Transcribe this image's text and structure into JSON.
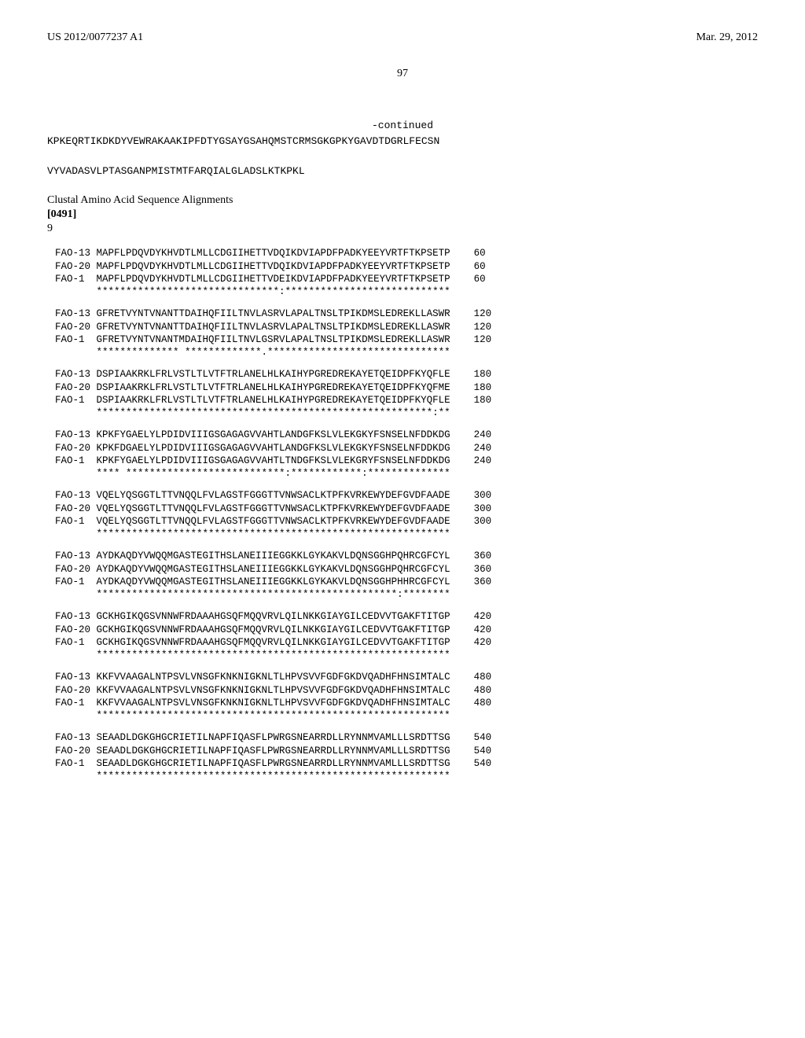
{
  "header": {
    "pub_number": "US 2012/0077237 A1",
    "date": "Mar. 29, 2012"
  },
  "page_number": "97",
  "continued_label": "-continued",
  "top_sequences": [
    "KPKEQRTIKDKDYVEWRAKAAKIPFDTYGSAYGSAHQMSTCRMSGKGPKYGAVDTDGRLFECSN",
    "VYVADASVLPTASGANPMISTMTFARQIALGLADSLKTKPKL"
  ],
  "section": {
    "title": "Clustal Amino Acid Sequence Alignments",
    "para": "[0491]",
    "table_num": "9"
  },
  "alignment_groups": [
    {
      "rows": [
        {
          "label": "FAO-13",
          "seq": "MAPFLPDQVDYKHVDTLMLLCDGIIHETTVDQIKDVIAPDFPADKYEEYVRTFTKPSETP",
          "pos": "60"
        },
        {
          "label": "FAO-20",
          "seq": "MAPFLPDQVDYKHVDTLMLLCDGIIHETTVDQIKDVIAPDFPADKYEEYVRTFTKPSETP",
          "pos": "60"
        },
        {
          "label": "FAO-1",
          "seq": "MAPFLPDQVDYKHVDTLMLLCDGIIHETTVDEIKDVIAPDFPADKYEEYVRTFTKPSETP",
          "pos": "60"
        },
        {
          "label": "",
          "seq": "*******************************:****************************",
          "pos": ""
        }
      ]
    },
    {
      "rows": [
        {
          "label": "FAO-13",
          "seq": "GFRETVYNTVNANTTDAIHQFIILTNVLASRVLAPALTNSLTPIKDMSLEDREKLLASWR",
          "pos": "120"
        },
        {
          "label": "FAO-20",
          "seq": "GFRETVYNTVNANTTDAIHQFIILTNVLASRVLAPALTNSLTPIKDMSLEDREKLLASWR",
          "pos": "120"
        },
        {
          "label": "FAO-1",
          "seq": "GFRETVYNTVNANTMDAIHQFIILTNVLGSRVLAPALTNSLTPIKDMSLEDREKLLASWR",
          "pos": "120"
        },
        {
          "label": "",
          "seq": "************** *************.*******************************",
          "pos": ""
        }
      ]
    },
    {
      "rows": [
        {
          "label": "FAO-13",
          "seq": "DSPIAAKRKLFRLVSTLTLVTFTRLANELHLKAIHYPGREDREKAYETQEIDPFKYQFLE",
          "pos": "180"
        },
        {
          "label": "FAO-20",
          "seq": "DSPIAAKRKLFRLVSTLTLVTFTRLANELHLKAIHYPGREDREKAYETQEIDPFKYQFME",
          "pos": "180"
        },
        {
          "label": "FAO-1",
          "seq": "DSPIAAKRKLFRLVSTLTLVTFTRLANELHLKAIHYPGREDREKAYETQEIDPFKYQFLE",
          "pos": "180"
        },
        {
          "label": "",
          "seq": "*********************************************************:**",
          "pos": ""
        }
      ]
    },
    {
      "rows": [
        {
          "label": "FAO-13",
          "seq": "KPKFYGAELYLPDIDVIIIGSGAGAGVVAHTLANDGFKSLVLEKGKYFSNSELNFDDKDG",
          "pos": "240"
        },
        {
          "label": "FAO-20",
          "seq": "KPKFDGAELYLPDIDVIIIGSGAGAGVVAHTLANDGFKSLVLEKGKYFSNSELNFDDKDG",
          "pos": "240"
        },
        {
          "label": "FAO-1",
          "seq": "KPKFYGAELYLPDIDVIIIGSGAGAGVVAHTLTNDGFKSLVLEKGRYFSNSELNFDDKDG",
          "pos": "240"
        },
        {
          "label": "",
          "seq": "**** ***************************:************:**************",
          "pos": ""
        }
      ]
    },
    {
      "rows": [
        {
          "label": "FAO-13",
          "seq": "VQELYQSGGTLTTVNQQLFVLAGSTFGGGTTVNWSACLKTPFKVRKEWYDEFGVDFAADE",
          "pos": "300"
        },
        {
          "label": "FAO-20",
          "seq": "VQELYQSGGTLTTVNQQLFVLAGSTFGGGTTVNWSACLKTPFKVRKEWYDEFGVDFAADE",
          "pos": "300"
        },
        {
          "label": "FAO-1",
          "seq": "VQELYQSGGTLTTVNQQLFVLAGSTFGGGTTVNWSACLKTPFKVRKEWYDEFGVDFAADE",
          "pos": "300"
        },
        {
          "label": "",
          "seq": "************************************************************",
          "pos": ""
        }
      ]
    },
    {
      "rows": [
        {
          "label": "FAO-13",
          "seq": "AYDKAQDYVWQQMGASTEGITHSLANEIIIEGGKKLGYKAKVLDQNSGGHPQHRCGFCYL",
          "pos": "360"
        },
        {
          "label": "FAO-20",
          "seq": "AYDKAQDYVWQQMGASTEGITHSLANEIIIEGGKKLGYKAKVLDQNSGGHPQHRCGFCYL",
          "pos": "360"
        },
        {
          "label": "FAO-1",
          "seq": "AYDKAQDYVWQQMGASTEGITHSLANEIIIEGGKKLGYKAKVLDQNSGGHPHHRCGFCYL",
          "pos": "360"
        },
        {
          "label": "",
          "seq": "***************************************************:********",
          "pos": ""
        }
      ]
    },
    {
      "rows": [
        {
          "label": "FAO-13",
          "seq": "GCKHGIKQGSVNNWFRDAAAHGSQFMQQVRVLQILNKKGIAYGILCEDVVTGAKFTITGP",
          "pos": "420"
        },
        {
          "label": "FAO-20",
          "seq": "GCKHGIKQGSVNNWFRDAAAHGSQFMQQVRVLQILNKKGIAYGILCEDVVTGAKFTITGP",
          "pos": "420"
        },
        {
          "label": "FAO-1",
          "seq": "GCKHGIKQGSVNNWFRDAAAHGSQFMQQVRVLQILNKKGIAYGILCEDVVTGAKFTITGP",
          "pos": "420"
        },
        {
          "label": "",
          "seq": "************************************************************",
          "pos": ""
        }
      ]
    },
    {
      "rows": [
        {
          "label": "FAO-13",
          "seq": "KKFVVAAGALNTPSVLVNSGFKNKNIGKNLTLHPVSVVFGDFGKDVQADHFHNSIMTALC",
          "pos": "480"
        },
        {
          "label": "FAO-20",
          "seq": "KKFVVAAGALNTPSVLVNSGFKNKNIGKNLTLHPVSVVFGDFGKDVQADHFHNSIMTALC",
          "pos": "480"
        },
        {
          "label": "FAO-1",
          "seq": "KKFVVAAGALNTPSVLVNSGFKNKNIGKNLTLHPVSVVFGDFGKDVQADHFHNSIMTALC",
          "pos": "480"
        },
        {
          "label": "",
          "seq": "************************************************************",
          "pos": ""
        }
      ]
    },
    {
      "rows": [
        {
          "label": "FAO-13",
          "seq": "SEAADLDGKGHGCRIETILNAPFIQASFLPWRGSNEARRDLLRYNNMVAMLLLSRDTTSG",
          "pos": "540"
        },
        {
          "label": "FAO-20",
          "seq": "SEAADLDGKGHGCRIETILNAPFIQASFLPWRGSNEARRDLLRYNNMVAMLLLSRDTTSG",
          "pos": "540"
        },
        {
          "label": "FAO-1",
          "seq": "SEAADLDGKGHGCRIETILNAPFIQASFLPWRGSNEARRDLLRYNNMVAMLLLSRDTTSG",
          "pos": "540"
        },
        {
          "label": "",
          "seq": "************************************************************",
          "pos": ""
        }
      ]
    }
  ]
}
